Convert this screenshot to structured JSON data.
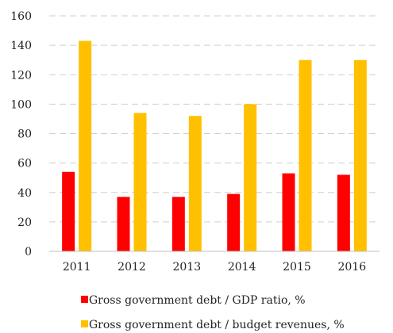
{
  "chart_data": {
    "type": "bar",
    "title": "",
    "xlabel": "",
    "ylabel": "",
    "categories": [
      "2011",
      "2012",
      "2013",
      "2014",
      "2015",
      "2016"
    ],
    "ylim": [
      0,
      160
    ],
    "yticks": [
      0,
      20,
      40,
      60,
      80,
      100,
      120,
      140,
      160
    ],
    "yticks_labels": [
      "0",
      "20",
      "40",
      "60",
      "80",
      "100",
      "120",
      "140",
      "160"
    ],
    "grid": true,
    "legend_position": "bottom",
    "series": [
      {
        "name": "Gross government debt / GDP ratio, %",
        "color": "#ff0000",
        "values": [
          54,
          37,
          37,
          39,
          53,
          52
        ]
      },
      {
        "name": "Gross government debt / budget revenues, %",
        "color": "#ffc000",
        "values": [
          143,
          94,
          92,
          100,
          130,
          130
        ]
      }
    ]
  }
}
